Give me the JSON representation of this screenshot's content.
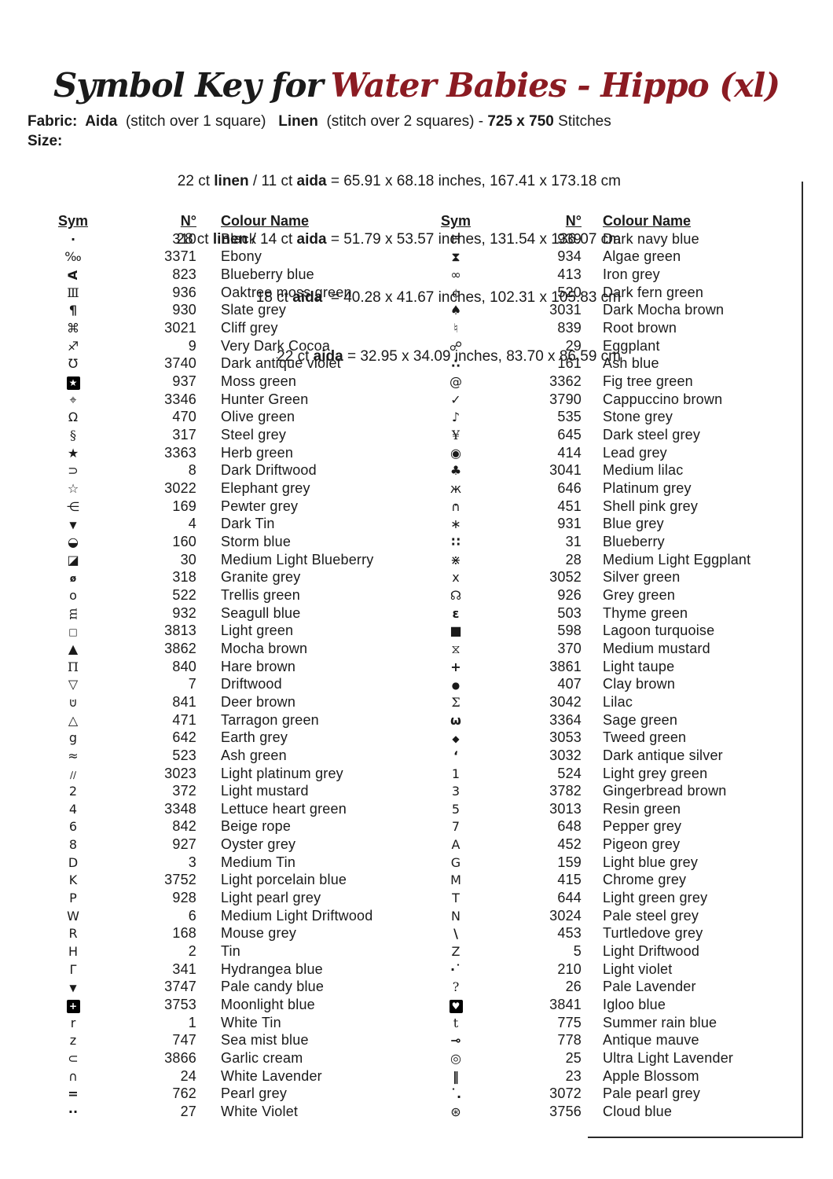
{
  "title": {
    "prefix": "Symbol Key for",
    "subject": "Water Babies - Hippo (xl)",
    "accent": "#8b1b22"
  },
  "fabric": {
    "segments": [
      {
        "t": "Fabric:  ",
        "b": true
      },
      {
        "t": "Aida",
        "b": true
      },
      {
        "t": "  (stitch over 1 square)   ",
        "b": false
      },
      {
        "t": "Linen",
        "b": true
      },
      {
        "t": "  (stitch over 2 squares) - ",
        "b": false
      },
      {
        "t": "725 x 750",
        "b": true
      },
      {
        "t": " Stitches",
        "b": false
      }
    ]
  },
  "size": {
    "label": "Size:",
    "lines": [
      [
        {
          "t": "22 ct ",
          "b": false
        },
        {
          "t": "linen",
          "b": true
        },
        {
          "t": " / 11 ct ",
          "b": false
        },
        {
          "t": "aida",
          "b": true
        },
        {
          "t": " = 65.91 x 68.18 inches, 167.41 x 173.18 cm",
          "b": false
        }
      ],
      [
        {
          "t": "28 ct ",
          "b": false
        },
        {
          "t": "linen",
          "b": true
        },
        {
          "t": " / 14 ct ",
          "b": false
        },
        {
          "t": "aida",
          "b": true
        },
        {
          "t": " = 51.79 x 53.57 inches, 131.54 x 136.07 cm",
          "b": false
        }
      ],
      [
        {
          "t": "18 ct ",
          "b": false
        },
        {
          "t": "aida",
          "b": true
        },
        {
          "t": "  = 40.28 x 41.67 inches, 102.31 x 105.83 cm",
          "b": false
        }
      ],
      [
        {
          "t": "22 ct ",
          "b": false
        },
        {
          "t": "aida",
          "b": true
        },
        {
          "t": " = 32.95 x 34.09 inches, 83.70 x 86.59 cm",
          "b": false
        }
      ]
    ]
  },
  "table": {
    "headers": {
      "sym": "Sym",
      "n": "N°",
      "name": "Colour Name"
    },
    "left": [
      {
        "sym": "·",
        "n": "310",
        "name": "Black",
        "c": "b"
      },
      {
        "sym": "‰",
        "n": "3371",
        "name": "Ebony"
      },
      {
        "sym": "A",
        "n": "823",
        "name": "Blueberry blue",
        "c": "rotl b"
      },
      {
        "sym": "Ⅲ",
        "n": "936",
        "name": "Oaktree moss green",
        "c": "serif"
      },
      {
        "sym": "¶",
        "n": "930",
        "name": "Slate grey",
        "c": "b"
      },
      {
        "sym": "⌘",
        "n": "3021",
        "name": "Cliff grey"
      },
      {
        "sym": "♐",
        "n": "9",
        "name": "Very Dark Cocoa"
      },
      {
        "sym": "Ʊ",
        "n": "3740",
        "name": "Dark antique violet"
      },
      {
        "sym": "★",
        "n": "937",
        "name": "Moss green",
        "inv": true
      },
      {
        "sym": "⌖",
        "n": "3346",
        "name": "Hunter Green"
      },
      {
        "sym": "Ω",
        "n": "470",
        "name": "Olive green"
      },
      {
        "sym": "§",
        "n": "317",
        "name": "Steel grey",
        "c": "serif"
      },
      {
        "sym": "★",
        "n": "3363",
        "name": "Herb green"
      },
      {
        "sym": "⊃",
        "n": "8",
        "name": "Dark Driftwood"
      },
      {
        "sym": "☆",
        "n": "3022",
        "name": "Elephant grey"
      },
      {
        "sym": "⋲",
        "n": "169",
        "name": "Pewter grey"
      },
      {
        "sym": "▼",
        "n": "4",
        "name": "Dark Tin",
        "c": "sm"
      },
      {
        "sym": "◒",
        "n": "160",
        "name": "Storm blue"
      },
      {
        "sym": "◪",
        "n": "30",
        "name": "Medium Light Blueberry"
      },
      {
        "sym": "ø",
        "n": "318",
        "name": "Granite grey",
        "c": "b sm"
      },
      {
        "sym": "o",
        "n": "522",
        "name": "Trellis green"
      },
      {
        "sym": "m",
        "n": "932",
        "name": "Seagull blue",
        "c": "rotl serif"
      },
      {
        "sym": "□",
        "n": "3813",
        "name": "Light green",
        "c": "sm"
      },
      {
        "sym": "▲",
        "n": "3862",
        "name": "Mocha brown"
      },
      {
        "sym": "Π",
        "n": "840",
        "name": "Hare brown",
        "c": "serif"
      },
      {
        "sym": "▽",
        "n": "7",
        "name": "Driftwood"
      },
      {
        "sym": "∪",
        "n": "841",
        "name": "Deer brown",
        "ov": "·"
      },
      {
        "sym": "△",
        "n": "471",
        "name": "Tarragon green"
      },
      {
        "sym": "g",
        "n": "642",
        "name": "Earth grey"
      },
      {
        "sym": "≈",
        "n": "523",
        "name": "Ash green"
      },
      {
        "sym": "∕∕",
        "n": "3023",
        "name": "Light platinum grey",
        "c": "sm"
      },
      {
        "sym": "2",
        "n": "372",
        "name": "Light mustard"
      },
      {
        "sym": "4",
        "n": "3348",
        "name": "Lettuce heart green"
      },
      {
        "sym": "6",
        "n": "842",
        "name": "Beige rope"
      },
      {
        "sym": "8",
        "n": "927",
        "name": "Oyster grey"
      },
      {
        "sym": "D",
        "n": "3",
        "name": "Medium Tin"
      },
      {
        "sym": "K",
        "n": "3752",
        "name": "Light porcelain blue"
      },
      {
        "sym": "P",
        "n": "928",
        "name": "Light pearl grey"
      },
      {
        "sym": "W",
        "n": "6",
        "name": "Medium Light Driftwood"
      },
      {
        "sym": "R",
        "n": "168",
        "name": "Mouse grey"
      },
      {
        "sym": "H",
        "n": "2",
        "name": "Tin"
      },
      {
        "sym": "Γ",
        "n": "341",
        "name": "Hydrangea blue"
      },
      {
        "sym": "▼",
        "n": "3747",
        "name": "Pale candy blue",
        "c": "sm"
      },
      {
        "sym": "+",
        "n": "3753",
        "name": "Moonlight blue",
        "inv": true
      },
      {
        "sym": "r",
        "n": "1",
        "name": "White Tin"
      },
      {
        "sym": "z",
        "n": "747",
        "name": "Sea mist blue"
      },
      {
        "sym": "⊂",
        "n": "3866",
        "name": "Garlic cream"
      },
      {
        "sym": "∩",
        "n": "24",
        "name": "White Lavender"
      },
      {
        "sym": "=",
        "n": "762",
        "name": "Pearl grey",
        "c": "b"
      },
      {
        "sym": "··",
        "n": "27",
        "name": "White Violet",
        "c": "b"
      }
    ],
    "right": [
      {
        "sym": "Ħ",
        "n": "939",
        "name": "Dark navy blue"
      },
      {
        "sym": "⧗",
        "n": "934",
        "name": "Algae green"
      },
      {
        "sym": "∞",
        "n": "413",
        "name": "Iron grey"
      },
      {
        "sym": "¢",
        "n": "520",
        "name": "Dark fern green",
        "c": "serif"
      },
      {
        "sym": "♠",
        "n": "3031",
        "name": "Dark Mocha brown"
      },
      {
        "sym": "♮",
        "n": "839",
        "name": "Root brown"
      },
      {
        "sym": "☍",
        "n": "29",
        "name": "Eggplant"
      },
      {
        "sym": "∴",
        "n": "161",
        "name": "Ash blue",
        "c": "b"
      },
      {
        "sym": "@",
        "n": "3362",
        "name": "Fig tree green"
      },
      {
        "sym": "✓",
        "n": "3790",
        "name": "Cappuccino brown"
      },
      {
        "sym": "♪",
        "n": "535",
        "name": "Stone grey"
      },
      {
        "sym": "¥",
        "n": "645",
        "name": "Dark steel grey",
        "c": "serif"
      },
      {
        "sym": "◉",
        "n": "414",
        "name": "Lead grey"
      },
      {
        "sym": "♣",
        "n": "3041",
        "name": "Medium lilac"
      },
      {
        "sym": "ж",
        "n": "646",
        "name": "Platinum grey"
      },
      {
        "sym": "∩",
        "n": "451",
        "name": "Shell pink grey",
        "ov": "·"
      },
      {
        "sym": "∗",
        "n": "931",
        "name": "Blue grey"
      },
      {
        "sym": "∷",
        "n": "31",
        "name": "Blueberry",
        "c": "b"
      },
      {
        "sym": "⋇",
        "n": "28",
        "name": "Medium Light Eggplant"
      },
      {
        "sym": "x",
        "n": "3052",
        "name": "Silver green"
      },
      {
        "sym": "☊",
        "n": "926",
        "name": "Grey green"
      },
      {
        "sym": "ε",
        "n": "503",
        "name": "Thyme green",
        "c": "b"
      },
      {
        "sym": "■",
        "n": "598",
        "name": "Lagoon turquoise"
      },
      {
        "sym": "⧖",
        "n": "370",
        "name": "Medium mustard"
      },
      {
        "sym": "+",
        "n": "3861",
        "name": "Light taupe",
        "c": "b"
      },
      {
        "sym": "●",
        "n": "407",
        "name": "Clay brown",
        "c": "sm"
      },
      {
        "sym": "Σ",
        "n": "3042",
        "name": "Lilac",
        "c": "serif"
      },
      {
        "sym": "ω",
        "n": "3364",
        "name": "Sage green",
        "c": "b"
      },
      {
        "sym": "◆",
        "n": "3053",
        "name": "Tweed green",
        "c": "sm"
      },
      {
        "sym": "‘",
        "n": "3032",
        "name": "Dark antique silver",
        "c": "b"
      },
      {
        "sym": "1",
        "n": "524",
        "name": "Light grey green"
      },
      {
        "sym": "3",
        "n": "3782",
        "name": "Gingerbread brown"
      },
      {
        "sym": "5",
        "n": "3013",
        "name": "Resin green"
      },
      {
        "sym": "7",
        "n": "648",
        "name": "Pepper grey"
      },
      {
        "sym": "A",
        "n": "452",
        "name": "Pigeon grey"
      },
      {
        "sym": "G",
        "n": "159",
        "name": "Light blue grey"
      },
      {
        "sym": "M",
        "n": "415",
        "name": "Chrome grey"
      },
      {
        "sym": "T",
        "n": "644",
        "name": "Light green grey"
      },
      {
        "sym": "N",
        "n": "3024",
        "name": "Pale steel grey"
      },
      {
        "sym": "\\",
        "n": "453",
        "name": "Turtledove grey",
        "c": "b"
      },
      {
        "sym": "Z",
        "n": "5",
        "name": "Light Driftwood"
      },
      {
        "sym": "·˙",
        "n": "210",
        "name": "Light violet",
        "c": "b"
      },
      {
        "sym": "?",
        "n": "26",
        "name": "Pale Lavender",
        "c": "serif"
      },
      {
        "sym": "♥",
        "n": "3841",
        "name": "Igloo blue",
        "inv": true
      },
      {
        "sym": "t",
        "n": "775",
        "name": "Summer rain blue",
        "c": "serif"
      },
      {
        "sym": "⊸",
        "n": "778",
        "name": "Antique mauve",
        "c": "b"
      },
      {
        "sym": "◎",
        "n": "25",
        "name": "Ultra Light Lavender"
      },
      {
        "sym": "‖",
        "n": "23",
        "name": "Apple Blossom",
        "c": "b"
      },
      {
        "sym": "˙.",
        "n": "3072",
        "name": "Pale pearl grey",
        "c": "b"
      },
      {
        "sym": "⊛",
        "n": "3756",
        "name": "Cloud blue"
      }
    ]
  }
}
